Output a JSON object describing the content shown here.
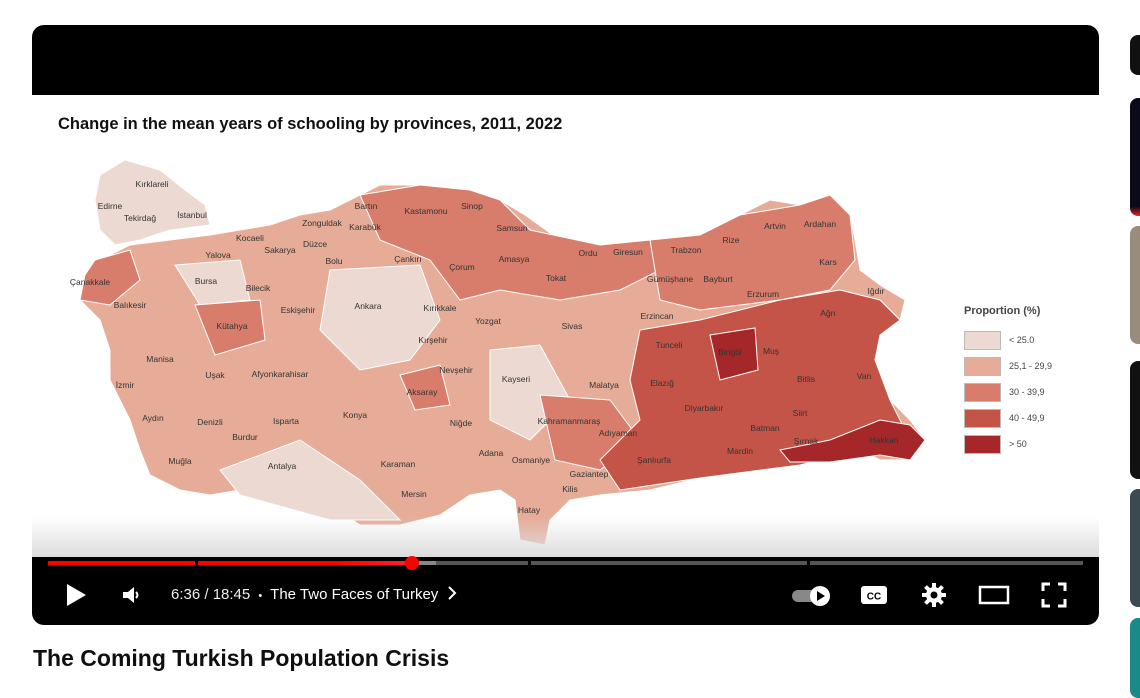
{
  "video": {
    "title": "The Coming Turkish Population Crisis",
    "current_time": "6:36",
    "duration": "18:45",
    "time_display": "6:36 / 18:45",
    "separator": "•",
    "chapter": "The Two Faces of Turkey",
    "progress_percent": 35.2,
    "buffered_percent": 37.5,
    "autoplay": true
  },
  "controls": {
    "icons": [
      "play-icon",
      "volume-icon",
      "chevron-right-icon",
      "autoplay-toggle-icon",
      "cc-icon",
      "settings-gear-icon",
      "theater-mode-icon",
      "fullscreen-icon"
    ]
  },
  "slide": {
    "title": "Change in the mean years of schooling by provinces, 2011, 2022",
    "legend": {
      "title": "Proportion (%)",
      "items": [
        {
          "label": "< 25.0",
          "color": "#ecd9d2"
        },
        {
          "label": "25,1 - 29,9",
          "color": "#e6ac98"
        },
        {
          "label": "30 - 39,9",
          "color": "#d87c6c"
        },
        {
          "label": "40 - 49,9",
          "color": "#c45447"
        },
        {
          "label": "> 50",
          "color": "#a5272a"
        }
      ]
    },
    "provinces": [
      "Kırklareli",
      "Edirne",
      "Tekirdağ",
      "İstanbul",
      "Kocaeli",
      "Yalova",
      "Sakarya",
      "Düzce",
      "Zonguldak",
      "Bartın",
      "Karabük",
      "Kastamonu",
      "Sinop",
      "Samsun",
      "Bolu",
      "Çankırı",
      "Çorum",
      "Amasya",
      "Ordu",
      "Giresun",
      "Trabzon",
      "Rize",
      "Artvin",
      "Ardahan",
      "Kars",
      "Iğdır",
      "Ağrı",
      "Erzurum",
      "Bayburt",
      "Gümüşhane",
      "Tokat",
      "Erzincan",
      "Sivas",
      "Yozgat",
      "Kırıkkale",
      "Ankara",
      "Eskişehir",
      "Bilecik",
      "Bursa",
      "Balıkesir",
      "Çanakkale",
      "Kütahya",
      "Manisa",
      "İzmir",
      "Uşak",
      "Afyonkarahisar",
      "Kırşehir",
      "Nevşehir",
      "Aksaray",
      "Kayseri",
      "Malatya",
      "Elazığ",
      "Tunceli",
      "Bingöl",
      "Muş",
      "Bitlis",
      "Van",
      "Diyarbakır",
      "Batman",
      "Siirt",
      "Şırnak",
      "Hakkari",
      "Mardin",
      "Şanlıurfa",
      "Adıyaman",
      "Kahramanmaraş",
      "Gaziantep",
      "Kilis",
      "Osmaniye",
      "Adana",
      "Hatay",
      "Mersin",
      "Karaman",
      "Niğde",
      "Konya",
      "Antalya",
      "Burdur",
      "Isparta",
      "Denizli",
      "Aydın",
      "Muğla"
    ]
  }
}
